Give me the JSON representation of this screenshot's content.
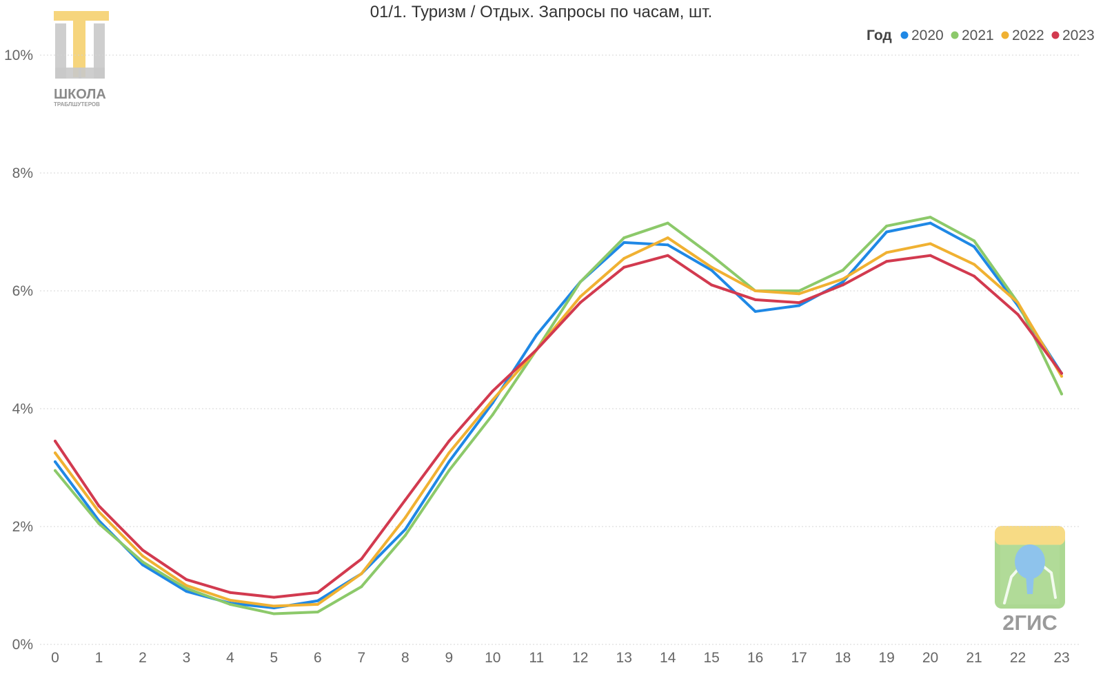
{
  "chart_data": {
    "type": "line",
    "title": "01/1. Туризм / Отдых. Запросы по часам, шт.",
    "xlabel": "",
    "ylabel": "",
    "x": [
      0,
      1,
      2,
      3,
      4,
      5,
      6,
      7,
      8,
      9,
      10,
      11,
      12,
      13,
      14,
      15,
      16,
      17,
      18,
      19,
      20,
      21,
      22,
      23
    ],
    "ylim": [
      0,
      10
    ],
    "y_ticks": [
      0,
      2,
      4,
      6,
      8,
      10
    ],
    "y_tick_labels": [
      "0%",
      "2%",
      "4%",
      "6%",
      "8%",
      "10%"
    ],
    "grid": true,
    "legend": {
      "title": "Год",
      "position": "top-right"
    },
    "series": [
      {
        "name": "2020",
        "color": "#1f88e5",
        "values": [
          3.1,
          2.1,
          1.35,
          0.9,
          0.7,
          0.62,
          0.74,
          1.2,
          1.95,
          3.1,
          4.1,
          5.25,
          6.15,
          6.82,
          6.78,
          6.35,
          5.65,
          5.75,
          6.15,
          7.0,
          7.15,
          6.75,
          5.75,
          4.6
        ]
      },
      {
        "name": "2021",
        "color": "#8cc96a",
        "values": [
          2.95,
          2.05,
          1.4,
          0.95,
          0.68,
          0.52,
          0.55,
          0.98,
          1.85,
          2.95,
          3.9,
          5.0,
          6.15,
          6.9,
          7.15,
          6.6,
          6.0,
          6.0,
          6.35,
          7.1,
          7.25,
          6.85,
          5.8,
          4.25
        ]
      },
      {
        "name": "2022",
        "color": "#f0b132",
        "values": [
          3.25,
          2.25,
          1.5,
          1.0,
          0.75,
          0.65,
          0.68,
          1.2,
          2.15,
          3.25,
          4.15,
          5.0,
          5.9,
          6.55,
          6.9,
          6.4,
          6.0,
          5.95,
          6.2,
          6.65,
          6.8,
          6.45,
          5.8,
          4.55
        ]
      },
      {
        "name": "2023",
        "color": "#d23a4f",
        "values": [
          3.45,
          2.35,
          1.6,
          1.1,
          0.88,
          0.8,
          0.88,
          1.45,
          2.45,
          3.45,
          4.3,
          5.0,
          5.8,
          6.4,
          6.6,
          6.1,
          5.85,
          5.8,
          6.1,
          6.5,
          6.6,
          6.25,
          5.6,
          4.6
        ]
      }
    ]
  },
  "watermarks": {
    "school_logo": {
      "title": "ШКОЛА",
      "subtitle": "ТРАБЛШУТЕРОВ",
      "icon": "school-logo-icon"
    },
    "brand_logo": {
      "title": "2ГИС",
      "icon": "2gis-logo-icon"
    }
  },
  "colors": {
    "grid": "#d4d4d4",
    "text": "#333333",
    "tick": "#666666",
    "school_logo_yellow": "#f6d57d",
    "school_logo_gray": "#c9c9c9",
    "brand_yellow": "#f7db85",
    "brand_green": "#a8d68c",
    "brand_blue": "#8ec3ec"
  }
}
